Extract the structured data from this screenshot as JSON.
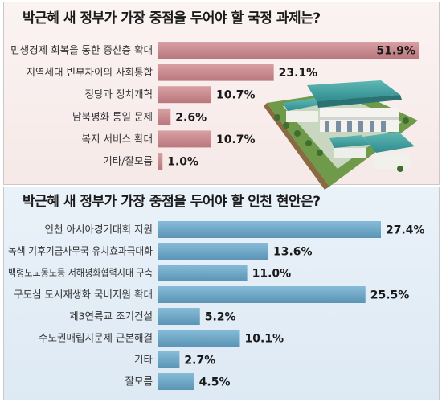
{
  "chart_data": [
    {
      "type": "bar",
      "orientation": "horizontal",
      "title": "박근혜 새 정부가 가장 중점을 두어야 할 국정 과제는?",
      "categories": [
        "민생경제 회복을 통한 중산층 확대",
        "지역세대 빈부차이의 사회통합",
        "정당과 정치개혁",
        "남북평화 통일 문제",
        "복지 서비스 확대",
        "기타/잘모름"
      ],
      "values": [
        51.9,
        23.1,
        10.7,
        2.6,
        10.7,
        1.0
      ],
      "value_labels": [
        "51.9%",
        "23.1%",
        "10.7%",
        "2.6%",
        "10.7%",
        "1.0%"
      ],
      "unit": "%",
      "bar_color": "#c98a8e"
    },
    {
      "type": "bar",
      "orientation": "horizontal",
      "title": "박근혜 새 정부가 가장 중점을 두어야 할 인천 현안은?",
      "categories": [
        "인천 아시아경기대회 지원",
        "녹색 기후기금사무국 유치효과극대화",
        "백령도교동도등 서해평화협력지대 구축",
        "구도심 도시재생화 국비지원 확대",
        "제3연륙교 조기건설",
        "수도권매립지문제 근본해결",
        "기타",
        "잘모름"
      ],
      "values": [
        27.4,
        13.6,
        11.0,
        25.5,
        5.2,
        10.1,
        2.7,
        4.5
      ],
      "value_labels": [
        "27.4%",
        "13.6%",
        "11.0%",
        "25.5%",
        "5.2%",
        "10.1%",
        "2.7%",
        "4.5%"
      ],
      "unit": "%",
      "bar_color": "#6aa4c4"
    }
  ]
}
